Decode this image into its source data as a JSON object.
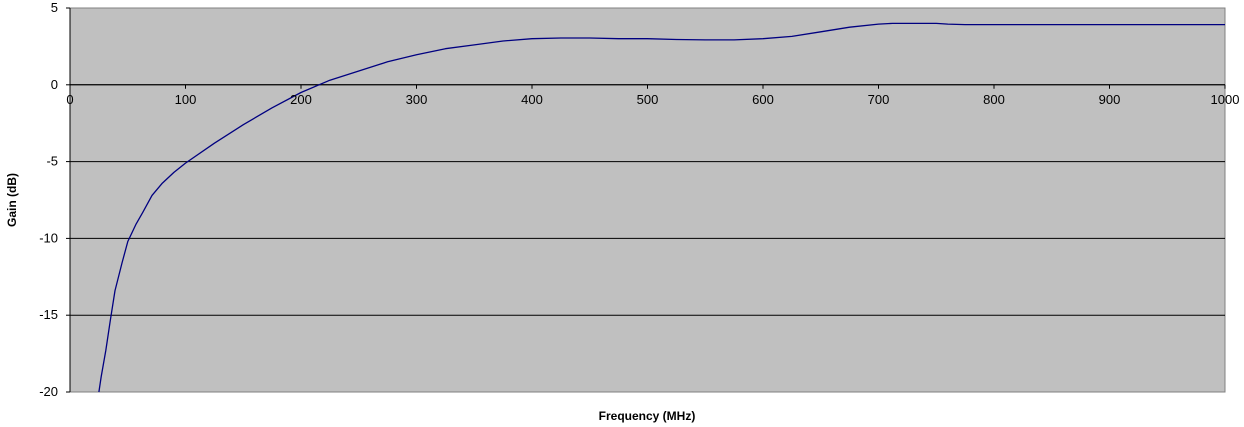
{
  "chart_data": {
    "type": "line",
    "title": "",
    "xlabel": "Frequency (MHz)",
    "ylabel": "Gain (dB)",
    "xlim": [
      0,
      1000
    ],
    "ylim": [
      -20,
      5
    ],
    "x_ticks": [
      0,
      100,
      200,
      300,
      400,
      500,
      600,
      700,
      800,
      900,
      1000
    ],
    "y_ticks": [
      5,
      0,
      -5,
      -10,
      -15,
      -20
    ],
    "x_tick_labels": [
      "0",
      "100",
      "200",
      "300",
      "400",
      "500",
      "600",
      "700",
      "800",
      "900",
      "1000"
    ],
    "y_tick_labels": [
      "5",
      "0",
      "-5",
      "-10",
      "-15",
      "-20"
    ],
    "grid": true,
    "legend": "none",
    "colors": {
      "plot_background": "#C0C0C0",
      "series_line": "#000080",
      "gridline": "#000000"
    },
    "series": [
      {
        "x": [
          25,
          27,
          31,
          35,
          39,
          45,
          50,
          57,
          63,
          71,
          80,
          90,
          100,
          125,
          150,
          175,
          200,
          225,
          250,
          275,
          300,
          325,
          350,
          375,
          400,
          425,
          450,
          475,
          500,
          525,
          550,
          575,
          600,
          625,
          650,
          675,
          700,
          712,
          725,
          750,
          760,
          775,
          800,
          850,
          900,
          950,
          1000
        ],
        "y": [
          -20.0,
          -19.0,
          -17.3,
          -15.3,
          -13.4,
          -11.6,
          -10.2,
          -9.1,
          -8.3,
          -7.2,
          -6.4,
          -5.7,
          -5.1,
          -3.8,
          -2.6,
          -1.5,
          -0.5,
          0.3,
          0.9,
          1.5,
          1.95,
          2.35,
          2.6,
          2.85,
          3.0,
          3.05,
          3.05,
          3.0,
          3.0,
          2.95,
          2.92,
          2.92,
          3.0,
          3.15,
          3.45,
          3.75,
          3.95,
          4.0,
          4.0,
          4.0,
          3.95,
          3.92,
          3.92,
          3.92,
          3.92,
          3.92,
          3.92
        ]
      }
    ]
  }
}
